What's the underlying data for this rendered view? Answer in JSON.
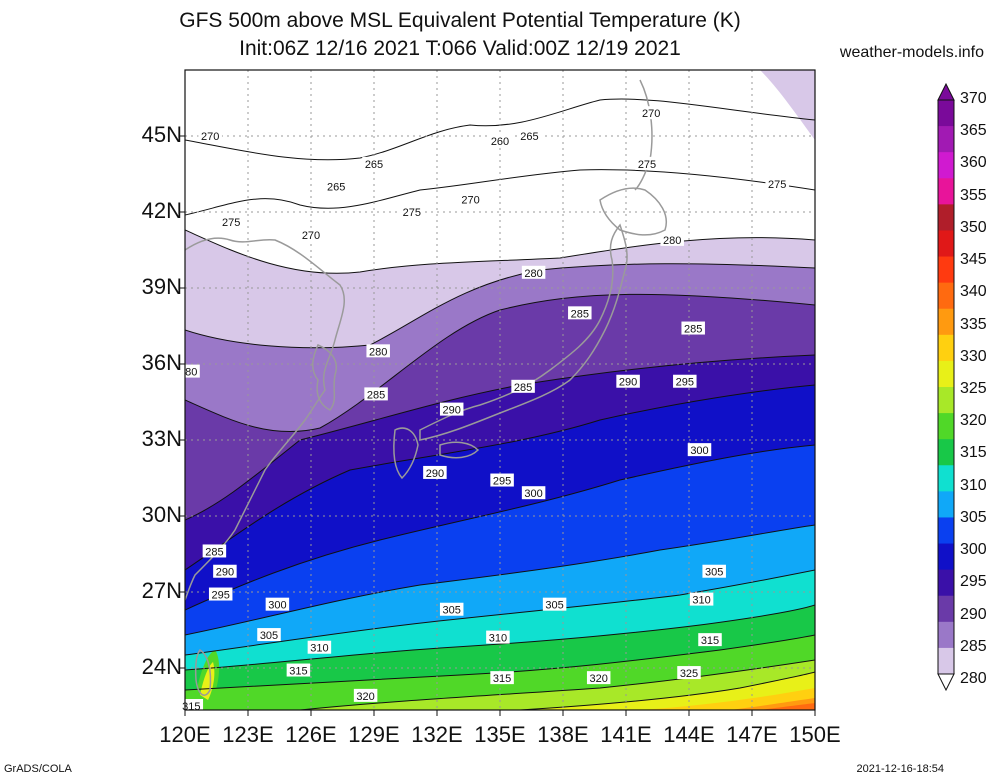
{
  "title_line1": "GFS 500m above MSL Equivalent Potential Temperature (K)",
  "title_line2": "Init:06Z 12/16 2021 T:066 Valid:00Z 12/19 2021",
  "site": "weather-models.info",
  "footer_left": "GrADS/COLA",
  "footer_right": "2021-12-16-18:54",
  "lat_labels": [
    "45N",
    "42N",
    "39N",
    "36N",
    "33N",
    "30N",
    "27N",
    "24N"
  ],
  "lon_labels": [
    "120E",
    "123E",
    "126E",
    "129E",
    "132E",
    "135E",
    "138E",
    "141E",
    "144E",
    "147E",
    "150E"
  ],
  "colorbar": {
    "levels": [
      "370",
      "365",
      "360",
      "355",
      "350",
      "345",
      "340",
      "335",
      "330",
      "325",
      "320",
      "315",
      "310",
      "305",
      "300",
      "295",
      "290",
      "285",
      "280"
    ],
    "colors": [
      "#7a0a9a",
      "#a11ab3",
      "#d01ad0",
      "#e8149a",
      "#b01e2a",
      "#e01818",
      "#ff3a10",
      "#ff6a10",
      "#ff9a10",
      "#ffd010",
      "#e8f018",
      "#a8e828",
      "#50d828",
      "#18c848",
      "#10e0d0",
      "#10a8f8",
      "#0a40f0",
      "#1010c8",
      "#3a10a8",
      "#6a3aa8",
      "#9a78c8",
      "#d8c8e8"
    ]
  },
  "contour_labels": [
    {
      "text": "270",
      "lon": 121.2,
      "lat": 45.0
    },
    {
      "text": "265",
      "lon": 129.0,
      "lat": 43.9
    },
    {
      "text": "260",
      "lon": 135.0,
      "lat": 44.8
    },
    {
      "text": "265",
      "lon": 136.4,
      "lat": 45.0
    },
    {
      "text": "270",
      "lon": 142.2,
      "lat": 45.9
    },
    {
      "text": "275",
      "lon": 142.0,
      "lat": 43.9
    },
    {
      "text": "265",
      "lon": 127.2,
      "lat": 43.0
    },
    {
      "text": "275",
      "lon": 130.8,
      "lat": 42.0
    },
    {
      "text": "270",
      "lon": 133.6,
      "lat": 42.5
    },
    {
      "text": "275",
      "lon": 148.2,
      "lat": 43.1
    },
    {
      "text": "275",
      "lon": 122.2,
      "lat": 41.6
    },
    {
      "text": "270",
      "lon": 126.0,
      "lat": 41.1
    },
    {
      "text": "280",
      "lon": 143.2,
      "lat": 40.9
    },
    {
      "text": "280",
      "lon": 136.6,
      "lat": 39.6
    },
    {
      "text": "285",
      "lon": 138.8,
      "lat": 38.0
    },
    {
      "text": "285",
      "lon": 144.2,
      "lat": 37.4
    },
    {
      "text": "280",
      "lon": 129.2,
      "lat": 36.5
    },
    {
      "text": "80",
      "lon": 120.3,
      "lat": 35.7
    },
    {
      "text": "285",
      "lon": 129.1,
      "lat": 34.8
    },
    {
      "text": "290",
      "lon": 132.7,
      "lat": 34.2
    },
    {
      "text": "285",
      "lon": 136.1,
      "lat": 35.1
    },
    {
      "text": "290",
      "lon": 141.1,
      "lat": 35.3
    },
    {
      "text": "295",
      "lon": 143.8,
      "lat": 35.3
    },
    {
      "text": "300",
      "lon": 144.5,
      "lat": 32.6
    },
    {
      "text": "290",
      "lon": 131.9,
      "lat": 31.7
    },
    {
      "text": "295",
      "lon": 135.1,
      "lat": 31.4
    },
    {
      "text": "300",
      "lon": 136.6,
      "lat": 30.9
    },
    {
      "text": "285",
      "lon": 121.4,
      "lat": 28.6
    },
    {
      "text": "290",
      "lon": 121.9,
      "lat": 27.8
    },
    {
      "text": "295",
      "lon": 121.7,
      "lat": 26.9
    },
    {
      "text": "300",
      "lon": 124.4,
      "lat": 26.5
    },
    {
      "text": "305",
      "lon": 124.0,
      "lat": 25.3
    },
    {
      "text": "310",
      "lon": 126.4,
      "lat": 24.8
    },
    {
      "text": "305",
      "lon": 132.7,
      "lat": 26.3
    },
    {
      "text": "310",
      "lon": 134.9,
      "lat": 25.2
    },
    {
      "text": "305",
      "lon": 137.6,
      "lat": 26.5
    },
    {
      "text": "310",
      "lon": 144.6,
      "lat": 26.7
    },
    {
      "text": "305",
      "lon": 145.2,
      "lat": 27.8
    },
    {
      "text": "315",
      "lon": 145.0,
      "lat": 25.1
    },
    {
      "text": "315",
      "lon": 125.4,
      "lat": 23.9
    },
    {
      "text": "315",
      "lon": 135.1,
      "lat": 23.6
    },
    {
      "text": "320",
      "lon": 139.7,
      "lat": 23.6
    },
    {
      "text": "325",
      "lon": 144.0,
      "lat": 23.8
    },
    {
      "text": "320",
      "lon": 128.6,
      "lat": 22.9
    },
    {
      "text": "315",
      "lon": 120.3,
      "lat": 22.5
    }
  ]
}
